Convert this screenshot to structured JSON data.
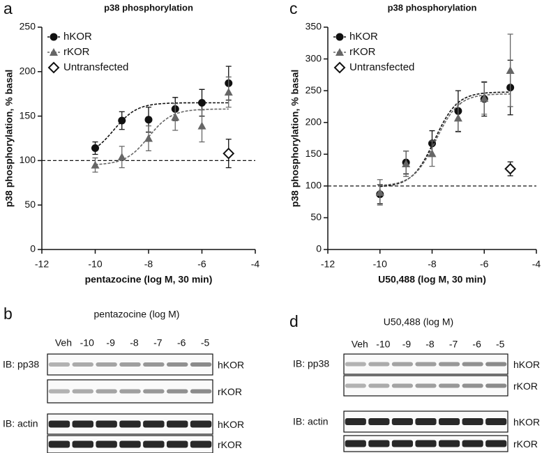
{
  "chart_data": [
    {
      "type": "scatter",
      "panel": "a",
      "title": "p38 phosphorylation",
      "ylabel": "p38 phosphorylation, % basal",
      "xlabel": "pentazocine (log M, 30 min)",
      "xlim": [
        -12,
        -4
      ],
      "xticks": [
        -12,
        -10,
        -8,
        -6,
        -4
      ],
      "ylim": [
        0,
        250
      ],
      "yticks": [
        0,
        50,
        100,
        150,
        200,
        250
      ],
      "reference_line": 100,
      "legend": "upper left",
      "series": [
        {
          "name": "hKOR",
          "color": "#111111",
          "marker": "circle",
          "x": [
            -10,
            -9,
            -8,
            -7,
            -6,
            -5
          ],
          "values": [
            114,
            145,
            146,
            158,
            165,
            187
          ],
          "errors": [
            7,
            10,
            14,
            13,
            15,
            19
          ],
          "fit": {
            "bottom": 104,
            "top": 165,
            "logec50": -9.3
          }
        },
        {
          "name": "rKOR",
          "color": "#666666",
          "marker": "triangle",
          "x": [
            -10,
            -9,
            -8,
            -7,
            -6,
            -5
          ],
          "values": [
            95,
            104,
            125,
            149,
            139,
            177
          ],
          "errors": [
            8,
            12,
            14,
            15,
            18,
            17
          ],
          "fit": {
            "bottom": 95,
            "top": 158,
            "logec50": -8.0
          }
        },
        {
          "name": "Untransfected",
          "color": "#111111",
          "marker": "diamond",
          "x": [
            -5
          ],
          "values": [
            108
          ],
          "errors": [
            16
          ]
        }
      ]
    },
    {
      "type": "scatter",
      "panel": "c",
      "title": "p38 phosphorylation",
      "ylabel": "p38 phosphorylation, % basal",
      "xlabel": "U50,488 (log M, 30 min)",
      "xlim": [
        -12,
        -4
      ],
      "xticks": [
        -12,
        -10,
        -8,
        -6,
        -4
      ],
      "ylim": [
        0,
        350
      ],
      "yticks": [
        0,
        50,
        100,
        150,
        200,
        250,
        300,
        350
      ],
      "reference_line": 100,
      "legend": "upper left",
      "series": [
        {
          "name": "hKOR",
          "color": "#111111",
          "marker": "circle",
          "x": [
            -10,
            -9,
            -8,
            -7,
            -6,
            -5
          ],
          "values": [
            87,
            137,
            167,
            218,
            237,
            255
          ],
          "errors": [
            15,
            18,
            20,
            32,
            27,
            43
          ],
          "fit": {
            "bottom": 98,
            "top": 248,
            "logec50": -7.9
          }
        },
        {
          "name": "rKOR",
          "color": "#666666",
          "marker": "triangle",
          "x": [
            -10,
            -9,
            -8,
            -7,
            -6,
            -5
          ],
          "values": [
            90,
            135,
            151,
            207,
            238,
            282
          ],
          "errors": [
            20,
            20,
            20,
            22,
            25,
            57
          ],
          "fit": {
            "bottom": 100,
            "top": 245,
            "logec50": -7.85
          }
        },
        {
          "name": "Untransfected",
          "color": "#111111",
          "marker": "diamond",
          "x": [
            -5
          ],
          "values": [
            127
          ],
          "errors": [
            11
          ]
        }
      ]
    }
  ],
  "blots": [
    {
      "panel": "b",
      "title": "pentazocine (log M)",
      "lanes": [
        "Veh",
        "-10",
        "-9",
        "-8",
        "-7",
        "-6",
        "-5"
      ],
      "groups": [
        {
          "label": "IB: pp38",
          "rows": [
            "hKOR",
            "rKOR"
          ]
        },
        {
          "label": "IB: actin",
          "rows": [
            "hKOR",
            "rKOR"
          ]
        }
      ]
    },
    {
      "panel": "d",
      "title": "U50,488 (log M)",
      "lanes": [
        "Veh",
        "-10",
        "-9",
        "-8",
        "-7",
        "-6",
        "-5"
      ],
      "groups": [
        {
          "label": "IB: pp38",
          "rows": [
            "hKOR",
            "rKOR"
          ]
        },
        {
          "label": "IB: actin",
          "rows": [
            "hKOR",
            "rKOR"
          ]
        }
      ]
    }
  ]
}
